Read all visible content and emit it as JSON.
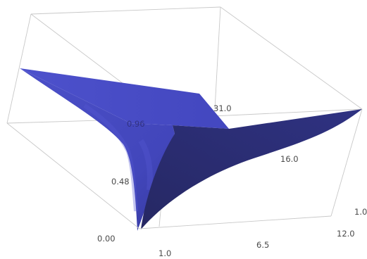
{
  "chart_data": {
    "type": "surface3d",
    "title": "",
    "colors": {
      "surface_top": "#4a4ec8",
      "surface_mid": "#3d41b0",
      "surface_dark": "#2d2f7a",
      "box_edges": "#c8c8c8",
      "tick_text": "#4a4a4a"
    },
    "axes": {
      "x": {
        "label": "",
        "range": [
          1.0,
          12.0
        ],
        "tick_labels": [
          "1.0",
          "6.5",
          "12.0"
        ]
      },
      "y": {
        "label": "",
        "range": [
          1.0,
          31.0
        ],
        "tick_labels": [
          "1.0",
          "16.0",
          "31.0"
        ]
      },
      "z": {
        "label": "",
        "range": [
          0.0,
          0.96
        ],
        "tick_labels": [
          "0.00",
          "0.48",
          "0.96"
        ]
      }
    },
    "grid": false,
    "legend": "none"
  }
}
